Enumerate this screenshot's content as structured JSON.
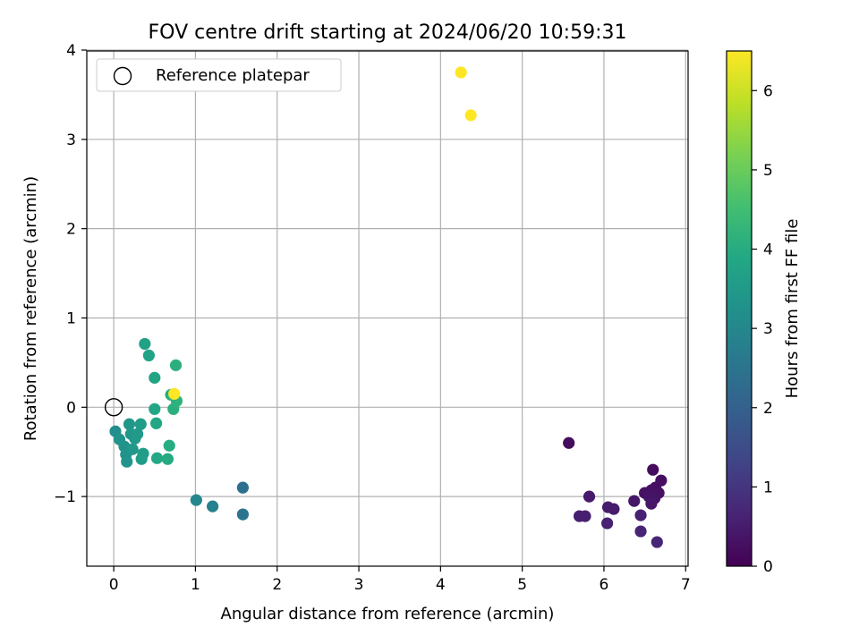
{
  "chart_data": {
    "type": "scatter",
    "title": "FOV centre drift starting at 2024/06/20 10:59:31",
    "xlabel": "Angular distance from reference (arcmin)",
    "ylabel": "Rotation from reference (arcmin)",
    "xlim": [
      -0.33,
      7.03
    ],
    "ylim": [
      -1.78,
      3.99
    ],
    "x_ticks": [
      0,
      1,
      2,
      3,
      4,
      5,
      6,
      7
    ],
    "y_ticks": [
      -1,
      0,
      1,
      2,
      3,
      4
    ],
    "x_tick_labels": [
      "0",
      "1",
      "2",
      "3",
      "4",
      "5",
      "6",
      "7"
    ],
    "y_tick_labels": [
      "−1",
      "0",
      "1",
      "2",
      "3",
      "4"
    ],
    "grid": true,
    "legend": {
      "position": "top-left",
      "entries": [
        {
          "label": "Reference platepar",
          "marker": "open-circle"
        }
      ]
    },
    "reference_point": {
      "x": 0,
      "y": 0
    },
    "colorbar": {
      "label": "Hours from first FF file",
      "range": [
        0,
        6.5
      ],
      "ticks": [
        0,
        1,
        2,
        3,
        4,
        5,
        6
      ],
      "tick_labels": [
        "0",
        "1",
        "2",
        "3",
        "4",
        "5",
        "6"
      ],
      "colormap": "viridis",
      "colors": [
        "#440154",
        "#482475",
        "#414487",
        "#355f8d",
        "#2a788e",
        "#21918c",
        "#22a884",
        "#44bf70",
        "#7ad151",
        "#bddf26",
        "#fde725"
      ]
    },
    "points": [
      {
        "x": 5.57,
        "y": -0.4,
        "c": 0.2
      },
      {
        "x": 6.6,
        "y": -0.7,
        "c": 0.2
      },
      {
        "x": 6.7,
        "y": -0.82,
        "c": 0.25
      },
      {
        "x": 6.63,
        "y": -0.9,
        "c": 0.25
      },
      {
        "x": 6.58,
        "y": -0.93,
        "c": 0.3
      },
      {
        "x": 6.5,
        "y": -0.96,
        "c": 0.3
      },
      {
        "x": 6.67,
        "y": -0.96,
        "c": 0.3
      },
      {
        "x": 6.55,
        "y": -1.0,
        "c": 0.35
      },
      {
        "x": 6.62,
        "y": -1.02,
        "c": 0.35
      },
      {
        "x": 6.37,
        "y": -1.05,
        "c": 0.4
      },
      {
        "x": 6.58,
        "y": -1.08,
        "c": 0.4
      },
      {
        "x": 5.82,
        "y": -1.0,
        "c": 0.45
      },
      {
        "x": 6.05,
        "y": -1.12,
        "c": 0.5
      },
      {
        "x": 6.12,
        "y": -1.14,
        "c": 0.5
      },
      {
        "x": 5.7,
        "y": -1.22,
        "c": 0.55
      },
      {
        "x": 5.77,
        "y": -1.22,
        "c": 0.55
      },
      {
        "x": 6.45,
        "y": -1.21,
        "c": 0.6
      },
      {
        "x": 6.04,
        "y": -1.3,
        "c": 0.6
      },
      {
        "x": 6.45,
        "y": -1.39,
        "c": 0.65
      },
      {
        "x": 6.65,
        "y": -1.51,
        "c": 0.7
      },
      {
        "x": 1.58,
        "y": -0.9,
        "c": 2.4
      },
      {
        "x": 1.58,
        "y": -1.2,
        "c": 2.5
      },
      {
        "x": 1.21,
        "y": -1.11,
        "c": 2.8
      },
      {
        "x": 1.01,
        "y": -1.04,
        "c": 3.0
      },
      {
        "x": 0.02,
        "y": -0.27,
        "c": 3.2
      },
      {
        "x": 0.07,
        "y": -0.36,
        "c": 3.3
      },
      {
        "x": 0.13,
        "y": -0.44,
        "c": 3.3
      },
      {
        "x": 0.15,
        "y": -0.53,
        "c": 3.3
      },
      {
        "x": 0.16,
        "y": -0.61,
        "c": 3.35
      },
      {
        "x": 0.19,
        "y": -0.19,
        "c": 3.4
      },
      {
        "x": 0.21,
        "y": -0.3,
        "c": 3.4
      },
      {
        "x": 0.23,
        "y": -0.47,
        "c": 3.45
      },
      {
        "x": 0.26,
        "y": -0.35,
        "c": 3.45
      },
      {
        "x": 0.29,
        "y": -0.3,
        "c": 3.5
      },
      {
        "x": 0.33,
        "y": -0.19,
        "c": 3.55
      },
      {
        "x": 0.34,
        "y": -0.58,
        "c": 3.55
      },
      {
        "x": 0.36,
        "y": -0.52,
        "c": 3.6
      },
      {
        "x": 0.38,
        "y": 0.71,
        "c": 3.7
      },
      {
        "x": 0.43,
        "y": 0.58,
        "c": 3.75
      },
      {
        "x": 0.5,
        "y": 0.33,
        "c": 3.8
      },
      {
        "x": 0.5,
        "y": -0.02,
        "c": 3.85
      },
      {
        "x": 0.52,
        "y": -0.18,
        "c": 3.85
      },
      {
        "x": 0.53,
        "y": -0.57,
        "c": 3.9
      },
      {
        "x": 0.66,
        "y": -0.58,
        "c": 3.95
      },
      {
        "x": 0.68,
        "y": -0.43,
        "c": 4.0
      },
      {
        "x": 0.7,
        "y": 0.14,
        "c": 4.05
      },
      {
        "x": 0.73,
        "y": -0.02,
        "c": 4.1
      },
      {
        "x": 0.76,
        "y": 0.47,
        "c": 4.1
      },
      {
        "x": 0.77,
        "y": 0.07,
        "c": 4.15
      },
      {
        "x": 0.74,
        "y": 0.15,
        "c": 6.5
      },
      {
        "x": 4.25,
        "y": 3.75,
        "c": 6.5
      },
      {
        "x": 4.37,
        "y": 3.27,
        "c": 6.5
      }
    ]
  }
}
